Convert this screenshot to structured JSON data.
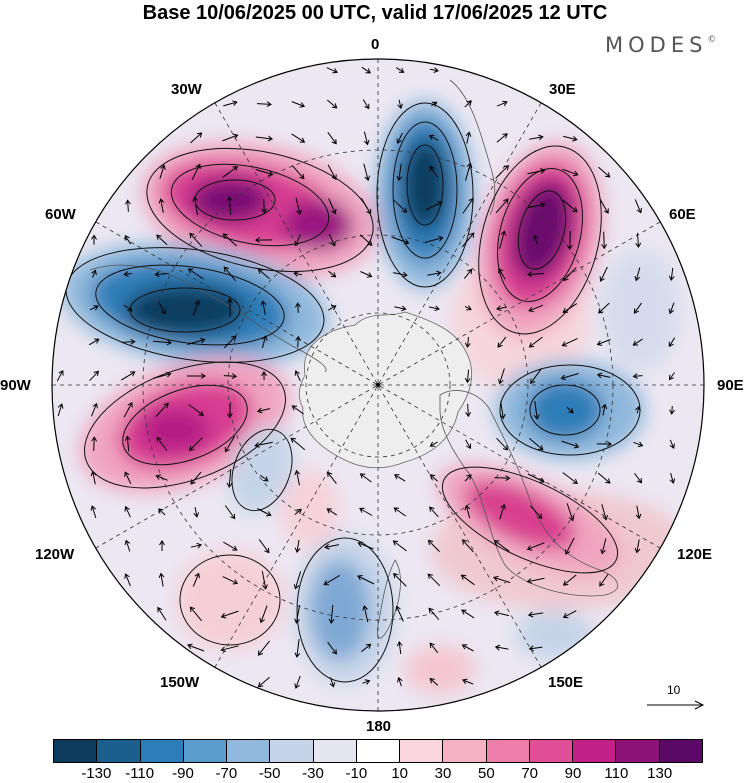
{
  "title": "Base 10/06/2025 00 UTC, valid 17/06/2025 12 UTC",
  "brand": "MODES",
  "brand_mark": "©",
  "longitude_labels": {
    "top": "0",
    "upper_right": "30E",
    "right_upper": "60E",
    "right": "90E",
    "right_lower": "120E",
    "lower_right": "150E",
    "bottom": "180",
    "lower_left": "150W",
    "left_lower": "120W",
    "left": "90W",
    "left_upper": "60W",
    "upper_left": "30W"
  },
  "reference_vector_label": "10",
  "colorbar": {
    "colors": [
      "#0d3c5e",
      "#1a5f8e",
      "#2d7db8",
      "#5a9ccc",
      "#8fb8dc",
      "#c5d4e8",
      "#e6e6f2",
      "#ffffff",
      "#f9d6de",
      "#f5b1c4",
      "#ee7fab",
      "#e04e97",
      "#c22187",
      "#8c1278",
      "#5a0a66"
    ],
    "tick_labels": [
      "-130",
      "-110",
      "-90",
      "-70",
      "-50",
      "-30",
      "-10",
      "10",
      "30",
      "50",
      "70",
      "90",
      "110",
      "130"
    ]
  }
}
